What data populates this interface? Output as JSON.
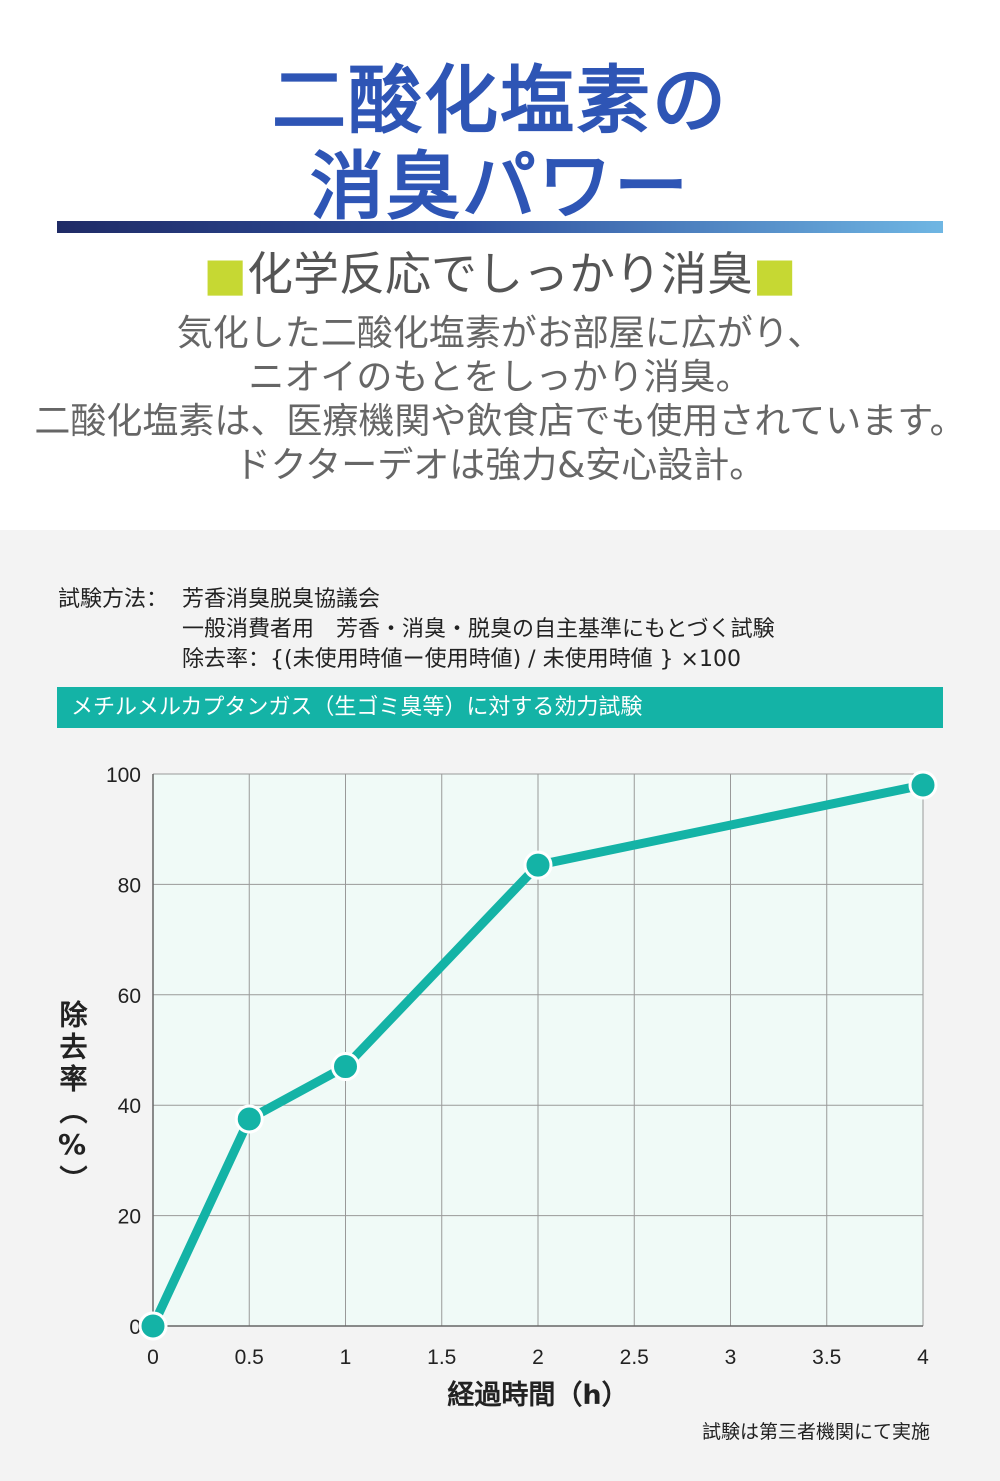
{
  "header": {
    "title_line1": "二酸化塩素の",
    "title_line2": "消臭パワー",
    "subtitle_marker": "■",
    "subtitle_text": "化学反応でしっかり消臭",
    "colors": {
      "title": "#2e55b5",
      "marker": "#c6d833",
      "accent": "#14b3a6"
    }
  },
  "description": {
    "lines": [
      "気化した二酸化塩素がお部屋に広がり、",
      "ニオイのもとをしっかり消臭。",
      "二酸化塩素は、医療機関や飲食店でも使用されています。",
      "ドクターデオは強力&安心設計。"
    ]
  },
  "method": {
    "label": "試験方法：",
    "line1": "芳香消臭脱臭協議会",
    "line2": "一般消費者用　芳香・消臭・脱臭の自主基準にもとづく試験",
    "line3": "除去率：{(未使用時値ー使用時値) / 未使用時値 } ×100"
  },
  "chart_header": "メチルメルカプタンガス（生ゴミ臭等）に対する効力試験",
  "chart_data": {
    "type": "line",
    "x": [
      0,
      0.5,
      1,
      2,
      4
    ],
    "y": [
      0,
      37.5,
      47,
      83.5,
      98
    ],
    "xlabel": "経過時間（h）",
    "ylabel": "除去率（%）",
    "xticks": [
      "0",
      "0.5",
      "1",
      "1.5",
      "2",
      "2.5",
      "3",
      "3.5",
      "4"
    ],
    "yticks": [
      "0",
      "20",
      "40",
      "60",
      "80",
      "100"
    ],
    "xlim": [
      0,
      4
    ],
    "ylim": [
      0,
      100
    ],
    "grid": true,
    "line_color": "#14b3a6",
    "plot_background": "#f0faf7"
  },
  "footnote": "試験は第三者機関にて実施"
}
